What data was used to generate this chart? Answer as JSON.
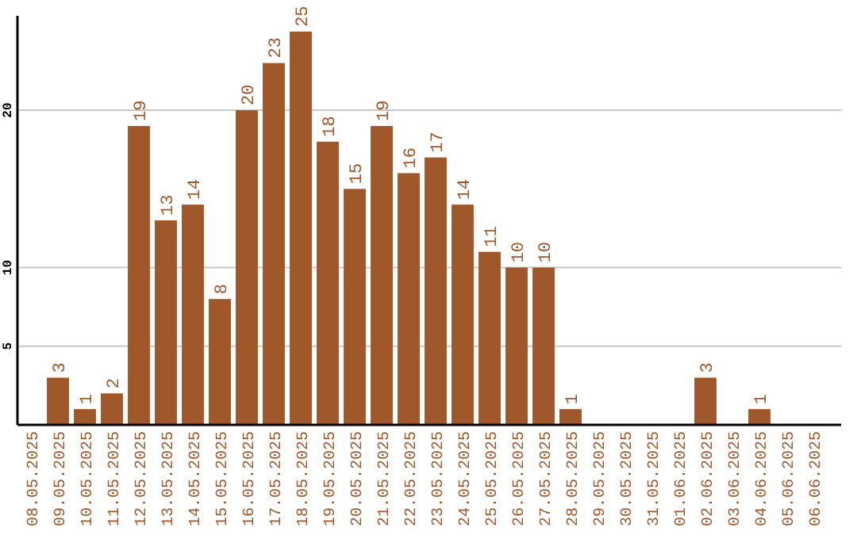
{
  "chart_data": {
    "type": "bar",
    "categories": [
      "08.05.2025",
      "09.05.2025",
      "10.05.2025",
      "11.05.2025",
      "12.05.2025",
      "13.05.2025",
      "14.05.2025",
      "15.05.2025",
      "16.05.2025",
      "17.05.2025",
      "18.05.2025",
      "19.05.2025",
      "20.05.2025",
      "21.05.2025",
      "22.05.2025",
      "23.05.2025",
      "24.05.2025",
      "25.05.2025",
      "26.05.2025",
      "27.05.2025",
      "28.05.2025",
      "29.05.2025",
      "30.05.2025",
      "31.05.2025",
      "01.06.2025",
      "02.06.2025",
      "03.06.2025",
      "04.06.2025",
      "05.06.2025",
      "06.06.2025"
    ],
    "values": [
      null,
      3,
      1,
      2,
      19,
      13,
      14,
      8,
      20,
      23,
      25,
      18,
      15,
      19,
      16,
      17,
      14,
      11,
      10,
      10,
      1,
      null,
      null,
      null,
      null,
      3,
      null,
      1,
      null,
      null
    ],
    "color": "#a0582a",
    "ylim": [
      0,
      26
    ],
    "yticks": [
      5,
      10,
      20
    ],
    "grid": "y",
    "data_labels": true
  }
}
